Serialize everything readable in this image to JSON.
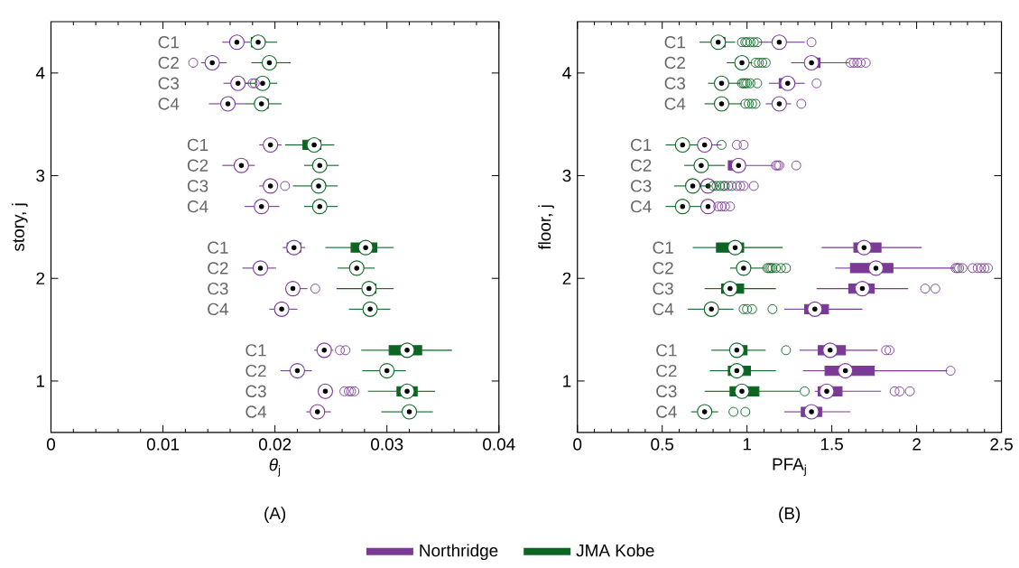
{
  "chart_data": [
    {
      "type": "box",
      "orientation": "horizontal",
      "title": "(A)",
      "xlabel": "*θ*$_{j}$",
      "ylabel": "story, j",
      "xlim": [
        0,
        0.04
      ],
      "xticks": [
        0,
        0.01,
        0.02,
        0.03,
        0.04
      ],
      "ylim": [
        0.5,
        4.5
      ],
      "yticks": [
        1,
        2,
        3,
        4
      ],
      "marker": "circle",
      "legend": "bottom",
      "series": [
        {
          "name": "Northridge",
          "color": "#7a3a96",
          "x": [
            4.3,
            4.1,
            3.9,
            3.7,
            3.3,
            3.1,
            2.9,
            2.7,
            2.3,
            2.1,
            1.9,
            1.7,
            1.3,
            1.1,
            0.9,
            0.7
          ],
          "boxes": [
            {
              "low": 0.0153,
              "q1": 0.0163,
              "median": 0.0166,
              "q3": 0.017,
              "high": 0.0178
            },
            {
              "low": 0.0134,
              "q1": 0.0142,
              "median": 0.0144,
              "q3": 0.0147,
              "high": 0.0157,
              "outliers": [
                0.0127
              ]
            },
            {
              "low": 0.0154,
              "q1": 0.0165,
              "median": 0.0167,
              "q3": 0.0169,
              "high": 0.0176,
              "outliers": [
                0.018,
                0.0182
              ]
            },
            {
              "low": 0.0141,
              "q1": 0.0156,
              "median": 0.0158,
              "q3": 0.0161,
              "high": 0.0173
            },
            {
              "low": 0.0186,
              "q1": 0.0194,
              "median": 0.0196,
              "q3": 0.0198,
              "high": 0.0206
            },
            {
              "low": 0.0153,
              "q1": 0.0168,
              "median": 0.017,
              "q3": 0.0172,
              "high": 0.0182
            },
            {
              "low": 0.0186,
              "q1": 0.0194,
              "median": 0.0196,
              "q3": 0.0198,
              "high": 0.0202,
              "outliers": [
                0.0209
              ]
            },
            {
              "low": 0.0173,
              "q1": 0.0186,
              "median": 0.0188,
              "q3": 0.019,
              "high": 0.0204
            },
            {
              "low": 0.0207,
              "q1": 0.0211,
              "median": 0.0217,
              "q3": 0.0223,
              "high": 0.0227
            },
            {
              "low": 0.0171,
              "q1": 0.0185,
              "median": 0.0187,
              "q3": 0.0189,
              "high": 0.0201
            },
            {
              "low": 0.021,
              "q1": 0.0214,
              "median": 0.0216,
              "q3": 0.0218,
              "high": 0.0229,
              "outliers": [
                0.0236
              ]
            },
            {
              "low": 0.0195,
              "q1": 0.0204,
              "median": 0.0206,
              "q3": 0.0208,
              "high": 0.022
            },
            {
              "low": 0.0235,
              "q1": 0.0242,
              "median": 0.0244,
              "q3": 0.0246,
              "high": 0.0252,
              "outliers": [
                0.0258,
                0.0263
              ]
            },
            {
              "low": 0.0205,
              "q1": 0.0218,
              "median": 0.022,
              "q3": 0.0222,
              "high": 0.0233
            },
            {
              "low": 0.0239,
              "q1": 0.0243,
              "median": 0.0245,
              "q3": 0.0247,
              "high": 0.0252,
              "outliers": [
                0.0262,
                0.0266,
                0.0268,
                0.0271
              ]
            },
            {
              "low": 0.0228,
              "q1": 0.0236,
              "median": 0.0238,
              "q3": 0.024,
              "high": 0.025
            }
          ]
        },
        {
          "name": "JMA Kobe",
          "color": "#0b6623",
          "x": [
            4.3,
            4.1,
            3.9,
            3.7,
            3.3,
            3.1,
            2.9,
            2.7,
            2.3,
            2.1,
            1.9,
            1.7,
            1.3,
            1.1,
            0.9,
            0.7
          ],
          "boxes": [
            {
              "low": 0.0179,
              "q1": 0.0179,
              "median": 0.0185,
              "q3": 0.0188,
              "high": 0.0202
            },
            {
              "low": 0.0179,
              "q1": 0.0193,
              "median": 0.0195,
              "q3": 0.0197,
              "high": 0.0214
            },
            {
              "low": 0.0174,
              "q1": 0.0186,
              "median": 0.0189,
              "q3": 0.0191,
              "high": 0.0202
            },
            {
              "low": 0.0173,
              "q1": 0.0186,
              "median": 0.0188,
              "q3": 0.0194,
              "high": 0.0206
            },
            {
              "low": 0.0209,
              "q1": 0.0225,
              "median": 0.0235,
              "q3": 0.0241,
              "high": 0.0253
            },
            {
              "low": 0.0226,
              "q1": 0.0238,
              "median": 0.024,
              "q3": 0.0242,
              "high": 0.0257
            },
            {
              "low": 0.0216,
              "q1": 0.0237,
              "median": 0.0239,
              "q3": 0.0241,
              "high": 0.0256
            },
            {
              "low": 0.0226,
              "q1": 0.0238,
              "median": 0.024,
              "q3": 0.0242,
              "high": 0.0256
            },
            {
              "low": 0.0245,
              "q1": 0.0268,
              "median": 0.0281,
              "q3": 0.0291,
              "high": 0.0306
            },
            {
              "low": 0.0256,
              "q1": 0.0271,
              "median": 0.0273,
              "q3": 0.0275,
              "high": 0.0289
            },
            {
              "low": 0.0255,
              "q1": 0.0281,
              "median": 0.0284,
              "q3": 0.029,
              "high": 0.0306
            },
            {
              "low": 0.0266,
              "q1": 0.0283,
              "median": 0.0285,
              "q3": 0.0287,
              "high": 0.0303
            },
            {
              "low": 0.0277,
              "q1": 0.0302,
              "median": 0.0318,
              "q3": 0.0331,
              "high": 0.0358
            },
            {
              "low": 0.0278,
              "q1": 0.0298,
              "median": 0.03,
              "q3": 0.0303,
              "high": 0.0317
            },
            {
              "low": 0.0283,
              "q1": 0.0309,
              "median": 0.0318,
              "q3": 0.0327,
              "high": 0.0343
            },
            {
              "low": 0.0295,
              "q1": 0.0318,
              "median": 0.032,
              "q3": 0.0324,
              "high": 0.0341
            }
          ]
        }
      ],
      "annotations": [
        "C1",
        "C2",
        "C3",
        "C4",
        "C1",
        "C2",
        "C3",
        "C4",
        "C1",
        "C2",
        "C3",
        "C4",
        "C1",
        "C2",
        "C3",
        "C4"
      ]
    },
    {
      "type": "box",
      "orientation": "horizontal",
      "title": "(B)",
      "xlabel": "PFA$_{j}$",
      "ylabel": "floor, j",
      "xlim": [
        0,
        2.5
      ],
      "xticks": [
        0,
        0.5,
        1,
        1.5,
        2,
        2.5
      ],
      "ylim": [
        0.5,
        4.5
      ],
      "yticks": [
        1,
        2,
        3,
        4
      ],
      "marker": "circle",
      "series": [
        {
          "color": "#7a3a96",
          "x": [
            4.3,
            4.1,
            3.9,
            3.7,
            3.3,
            3.1,
            2.9,
            2.7,
            2.3,
            2.1,
            1.9,
            1.7,
            1.3,
            1.1,
            0.9,
            0.7
          ],
          "boxes": [
            {
              "low": 1.07,
              "q1": 1.17,
              "median": 1.19,
              "q3": 1.22,
              "high": 1.34,
              "outliers": [
                1.38
              ]
            },
            {
              "low": 1.26,
              "q1": 1.36,
              "median": 1.38,
              "q3": 1.43,
              "high": 1.6,
              "outliers": [
                1.61,
                1.63,
                1.65,
                1.67,
                1.7
              ]
            },
            {
              "low": 1.13,
              "q1": 1.19,
              "median": 1.24,
              "q3": 1.26,
              "high": 1.34,
              "outliers": [
                1.41
              ]
            },
            {
              "low": 1.11,
              "q1": 1.17,
              "median": 1.19,
              "q3": 1.21,
              "high": 1.26,
              "outliers": [
                1.32
              ]
            },
            {
              "low": 0.7,
              "q1": 0.73,
              "median": 0.75,
              "q3": 0.77,
              "high": 0.85,
              "outliers": [
                0.94,
                0.98
              ]
            },
            {
              "low": 0.89,
              "q1": 0.89,
              "median": 0.95,
              "q3": 0.97,
              "high": 1.15,
              "outliers": [
                1.17,
                1.18,
                1.19,
                1.29
              ]
            },
            {
              "low": 0.7,
              "q1": 0.75,
              "median": 0.77,
              "q3": 0.79,
              "high": 0.83,
              "outliers": [
                0.87,
                0.89,
                0.94,
                0.96,
                0.98,
                1.04
              ]
            },
            {
              "low": 0.75,
              "q1": 0.75,
              "median": 0.77,
              "q3": 0.79,
              "high": 0.8,
              "outliers": [
                0.83,
                0.85,
                0.87,
                0.9
              ]
            },
            {
              "low": 1.44,
              "q1": 1.63,
              "median": 1.69,
              "q3": 1.79,
              "high": 2.03
            },
            {
              "low": 1.52,
              "q1": 1.61,
              "median": 1.76,
              "q3": 1.86,
              "high": 2.22,
              "outliers": [
                2.23,
                2.24,
                2.25,
                2.27,
                2.33,
                2.36,
                2.38,
                2.4,
                2.42
              ]
            },
            {
              "low": 1.41,
              "q1": 1.6,
              "median": 1.68,
              "q3": 1.75,
              "high": 1.95,
              "outliers": [
                2.05,
                2.11
              ]
            },
            {
              "low": 1.22,
              "q1": 1.34,
              "median": 1.4,
              "q3": 1.48,
              "high": 1.68
            },
            {
              "low": 1.31,
              "q1": 1.42,
              "median": 1.49,
              "q3": 1.58,
              "high": 1.77,
              "outliers": [
                1.82,
                1.84
              ]
            },
            {
              "low": 1.33,
              "q1": 1.46,
              "median": 1.58,
              "q3": 1.75,
              "high": 2.18,
              "outliers": [
                2.2
              ]
            },
            {
              "low": 1.4,
              "q1": 1.42,
              "median": 1.47,
              "q3": 1.56,
              "high": 1.79,
              "outliers": [
                1.87,
                1.9,
                1.96
              ]
            },
            {
              "low": 1.22,
              "q1": 1.32,
              "median": 1.38,
              "q3": 1.44,
              "high": 1.61
            }
          ]
        },
        {
          "color": "#0b6623",
          "x": [
            4.3,
            4.1,
            3.9,
            3.7,
            3.3,
            3.1,
            2.9,
            2.7,
            2.3,
            2.1,
            1.9,
            1.7,
            1.3,
            1.1,
            0.9,
            0.7
          ],
          "boxes": [
            {
              "low": 0.72,
              "q1": 0.81,
              "median": 0.83,
              "q3": 0.87,
              "high": 0.93,
              "outliers": [
                0.97,
                0.99,
                1.0,
                1.02,
                1.04,
                1.06
              ]
            },
            {
              "low": 0.88,
              "q1": 0.95,
              "median": 0.97,
              "q3": 0.99,
              "high": 1.03,
              "outliers": [
                1.05,
                1.07,
                1.09,
                1.11
              ]
            },
            {
              "low": 0.77,
              "q1": 0.83,
              "median": 0.85,
              "q3": 0.87,
              "high": 0.96,
              "outliers": [
                0.97,
                0.98,
                0.99,
                1.0,
                1.02,
                1.06
              ]
            },
            {
              "low": 0.75,
              "q1": 0.83,
              "median": 0.85,
              "q3": 0.87,
              "high": 0.97,
              "outliers": [
                0.99,
                1.01,
                1.03,
                1.05
              ]
            },
            {
              "low": 0.52,
              "q1": 0.6,
              "median": 0.62,
              "q3": 0.64,
              "high": 0.71,
              "outliers": [
                0.85
              ]
            },
            {
              "low": 0.63,
              "q1": 0.71,
              "median": 0.73,
              "q3": 0.75,
              "high": 0.87
            },
            {
              "low": 0.57,
              "q1": 0.66,
              "median": 0.68,
              "q3": 0.7,
              "high": 0.79,
              "outliers": [
                0.8,
                0.82,
                0.84,
                0.86,
                0.91
              ]
            },
            {
              "low": 0.52,
              "q1": 0.6,
              "median": 0.62,
              "q3": 0.64,
              "high": 0.73
            },
            {
              "low": 0.68,
              "q1": 0.82,
              "median": 0.93,
              "q3": 0.98,
              "high": 1.21
            },
            {
              "low": 0.9,
              "q1": 0.96,
              "median": 0.98,
              "q3": 1.0,
              "high": 1.1,
              "outliers": [
                1.12,
                1.13,
                1.14,
                1.15,
                1.17,
                1.2,
                1.23
              ]
            },
            {
              "low": 0.75,
              "q1": 0.85,
              "median": 0.9,
              "q3": 0.98,
              "high": 1.17
            },
            {
              "low": 0.65,
              "q1": 0.77,
              "median": 0.79,
              "q3": 0.81,
              "high": 0.92,
              "outliers": [
                0.98,
                1.0,
                1.03,
                1.15
              ]
            },
            {
              "low": 0.79,
              "q1": 0.92,
              "median": 0.94,
              "q3": 1.0,
              "high": 1.11,
              "outliers": [
                1.23
              ]
            },
            {
              "low": 0.78,
              "q1": 0.89,
              "median": 0.94,
              "q3": 1.02,
              "high": 1.17
            },
            {
              "low": 0.75,
              "q1": 0.9,
              "median": 0.97,
              "q3": 1.07,
              "high": 1.31,
              "outliers": [
                1.34
              ]
            },
            {
              "low": 0.67,
              "q1": 0.74,
              "median": 0.75,
              "q3": 0.77,
              "high": 0.83,
              "outliers": [
                0.92,
                0.99
              ]
            }
          ]
        }
      ],
      "annotations": [
        "C1",
        "C2",
        "C3",
        "C4",
        "C1",
        "C2",
        "C3",
        "C4",
        "C1",
        "C2",
        "C3",
        "C4",
        "C1",
        "C2",
        "C3",
        "C4"
      ]
    }
  ]
}
